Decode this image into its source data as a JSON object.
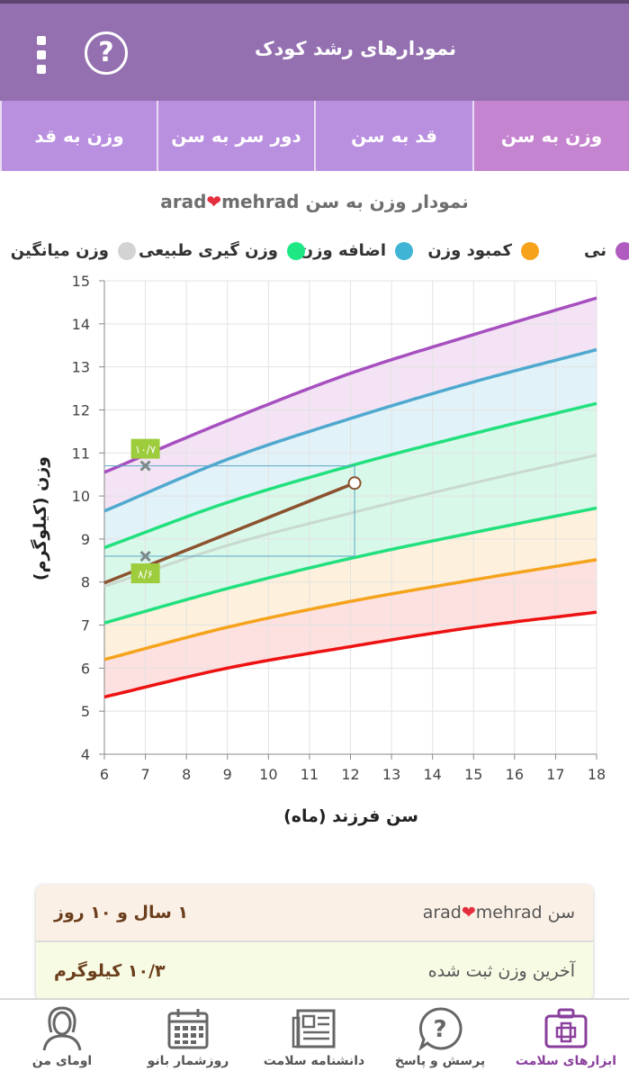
{
  "header": {
    "title": "نمودارهای رشد کودک",
    "menu_icon": "more-vert-icon",
    "help_icon": "help-circle-icon"
  },
  "tabs": [
    {
      "label": "وزن به سن",
      "active": true
    },
    {
      "label": "قد به سن",
      "active": false
    },
    {
      "label": "دور سر به سن",
      "active": false
    },
    {
      "label": "وزن به قد",
      "active": false
    }
  ],
  "chart": {
    "title_prefix": "نمودار وزن به سن",
    "name_a": "arad",
    "name_b": "mehrad",
    "legend": [
      {
        "label": "نی",
        "color": "#b05bc0"
      },
      {
        "label": "کمبود وزن",
        "color": "#f7a21b"
      },
      {
        "label": "اضافه وزن",
        "color": "#3fb4d4"
      },
      {
        "label": "وزن گیری طبیعی",
        "color": "#1ee883"
      },
      {
        "label": "وزن میانگین",
        "color": "#d3d3d3"
      }
    ],
    "ylabel": "وزن (کیلوگرم)",
    "xlabel": "سن فرزند (ماه)",
    "marker_high": "۱۰/۷",
    "marker_low": "۸/۶"
  },
  "chart_data": {
    "type": "line",
    "xlim": [
      6,
      18
    ],
    "ylim": [
      4,
      15
    ],
    "x_ticks": [
      6,
      7,
      8,
      9,
      10,
      11,
      12,
      13,
      14,
      15,
      16,
      17,
      18
    ],
    "y_ticks": [
      4,
      5,
      6,
      7,
      8,
      9,
      10,
      11,
      12,
      13,
      14,
      15
    ],
    "grid": true,
    "legend_position": "top",
    "reference_curves": [
      {
        "color": "#a64fbf",
        "points": [
          [
            6,
            10.55
          ],
          [
            9,
            11.75
          ],
          [
            12,
            12.85
          ],
          [
            15,
            13.75
          ],
          [
            18,
            14.6
          ]
        ]
      },
      {
        "color": "#4fa9cf",
        "points": [
          [
            6,
            9.65
          ],
          [
            9,
            10.85
          ],
          [
            12,
            11.8
          ],
          [
            15,
            12.65
          ],
          [
            18,
            13.4
          ]
        ]
      },
      {
        "color": "#22e07e",
        "points": [
          [
            6,
            8.8
          ],
          [
            9,
            9.85
          ],
          [
            12,
            10.7
          ],
          [
            15,
            11.45
          ],
          [
            18,
            12.15
          ]
        ]
      },
      {
        "color": "#c9d9cf",
        "points": [
          [
            6,
            7.9
          ],
          [
            9,
            8.85
          ],
          [
            12,
            9.6
          ],
          [
            15,
            10.3
          ],
          [
            18,
            10.95
          ]
        ]
      },
      {
        "color": "#22e07e",
        "points": [
          [
            6,
            7.05
          ],
          [
            9,
            7.85
          ],
          [
            12,
            8.55
          ],
          [
            15,
            9.15
          ],
          [
            18,
            9.72
          ]
        ]
      },
      {
        "color": "#f5a31c",
        "points": [
          [
            6,
            6.2
          ],
          [
            9,
            6.95
          ],
          [
            12,
            7.55
          ],
          [
            15,
            8.05
          ],
          [
            18,
            8.52
          ]
        ]
      },
      {
        "color": "#ee1111",
        "points": [
          [
            6,
            5.33
          ],
          [
            9,
            6.0
          ],
          [
            12,
            6.5
          ],
          [
            15,
            6.95
          ],
          [
            18,
            7.3
          ]
        ]
      }
    ],
    "band_fills": [
      "#f3e3f4",
      "#e1f2f8",
      "#d8f8e9",
      "#d8f8e9",
      "#fdf0dc",
      "#fde0e0"
    ],
    "child_series": {
      "color": "#8c5230",
      "points": [
        [
          6,
          7.98
        ],
        [
          12.1,
          10.3
        ]
      ]
    },
    "markers": [
      {
        "x": 7,
        "y": 10.7,
        "label": "۱۰/۷"
      },
      {
        "x": 7,
        "y": 8.6,
        "label": "۸/۶"
      }
    ],
    "highlight_range": {
      "x": [
        6,
        12.1
      ],
      "y": [
        8.6,
        10.7
      ]
    }
  },
  "info": {
    "age_label": "سن",
    "age_value": "۱ سال و ۱۰ روز",
    "age_bg": "#fbf0e6",
    "weight_label": "آخرین وزن ثبت شده",
    "weight_value": "۱۰/۳ کیلوگرم",
    "weight_bg": "#f8fbe4"
  },
  "bottom_nav": [
    {
      "label": "ابزارهای سلامت",
      "icon": "first-aid-kit-icon",
      "active": true
    },
    {
      "label": "پرسش و پاسخ",
      "icon": "question-bubble-icon",
      "active": false
    },
    {
      "label": "دانشنامه سلامت",
      "icon": "newspaper-icon",
      "active": false
    },
    {
      "label": "روزشمار بانو",
      "icon": "calendar-icon",
      "active": false
    },
    {
      "label": "اومای من",
      "icon": "woman-avatar-icon",
      "active": false
    }
  ]
}
